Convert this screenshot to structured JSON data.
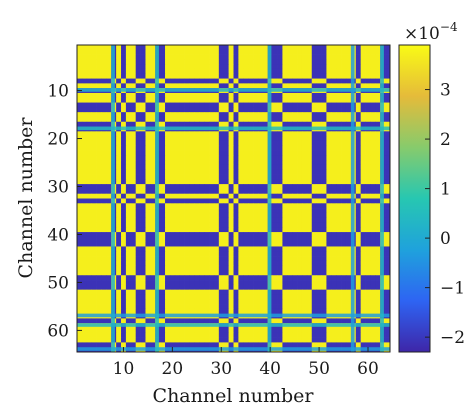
{
  "chart_data": {
    "type": "heatmap",
    "title": "",
    "xlabel": "Channel number",
    "ylabel": "Channel number",
    "n_channels": 64,
    "x_ticks": [
      10,
      20,
      30,
      40,
      50,
      60
    ],
    "y_ticks": [
      10,
      20,
      30,
      40,
      50,
      60
    ],
    "y_axis_direction": "top-down",
    "pattern": {
      "description_of_values": "block-structured matrix; cell value = high when row and column channels share the same group, low otherwise",
      "high_value": 3.7,
      "low_value": -2.1,
      "group_a_channels": [
        1,
        2,
        3,
        4,
        5,
        6,
        7,
        9,
        11,
        12,
        15,
        16,
        19,
        20,
        21,
        22,
        23,
        24,
        25,
        26,
        27,
        28,
        29,
        32,
        34,
        35,
        36,
        37,
        38,
        39,
        43,
        44,
        45,
        46,
        47,
        48,
        52,
        53,
        54,
        55,
        56,
        57,
        59,
        60,
        61,
        62
      ],
      "accent_lines": [
        {
          "orientation": "horizontal",
          "channel": 10,
          "value": 0.2
        },
        {
          "orientation": "horizontal",
          "channel": 18,
          "value": 0.5
        },
        {
          "orientation": "horizontal",
          "channel": 57,
          "value": -0.3
        },
        {
          "orientation": "horizontal",
          "channel": 59,
          "value": 0.4
        },
        {
          "orientation": "horizontal",
          "channel": 64,
          "value": -0.3
        },
        {
          "orientation": "vertical",
          "channel": 8,
          "value": 0.2
        },
        {
          "orientation": "vertical",
          "channel": 17,
          "value": 0.5
        },
        {
          "orientation": "vertical",
          "channel": 40,
          "value": 0.3
        },
        {
          "orientation": "vertical",
          "channel": 57,
          "value": -0.3
        },
        {
          "orientation": "vertical",
          "channel": 63,
          "value": 0.4
        }
      ]
    },
    "colorbar": {
      "range": [
        -2.3,
        3.9
      ],
      "ticks": [
        -2,
        -1,
        0,
        1,
        2,
        3
      ],
      "tick_labels": [
        "−2",
        "−1",
        "0",
        "1",
        "2",
        "3"
      ],
      "scale_label_base": "×10",
      "scale_label_exponent": "−4",
      "colormap": [
        "#3e26a8",
        "#2e64f3",
        "#1fa2dc",
        "#27c7b1",
        "#87cb6c",
        "#e5bb3a",
        "#f9fb15"
      ]
    }
  }
}
